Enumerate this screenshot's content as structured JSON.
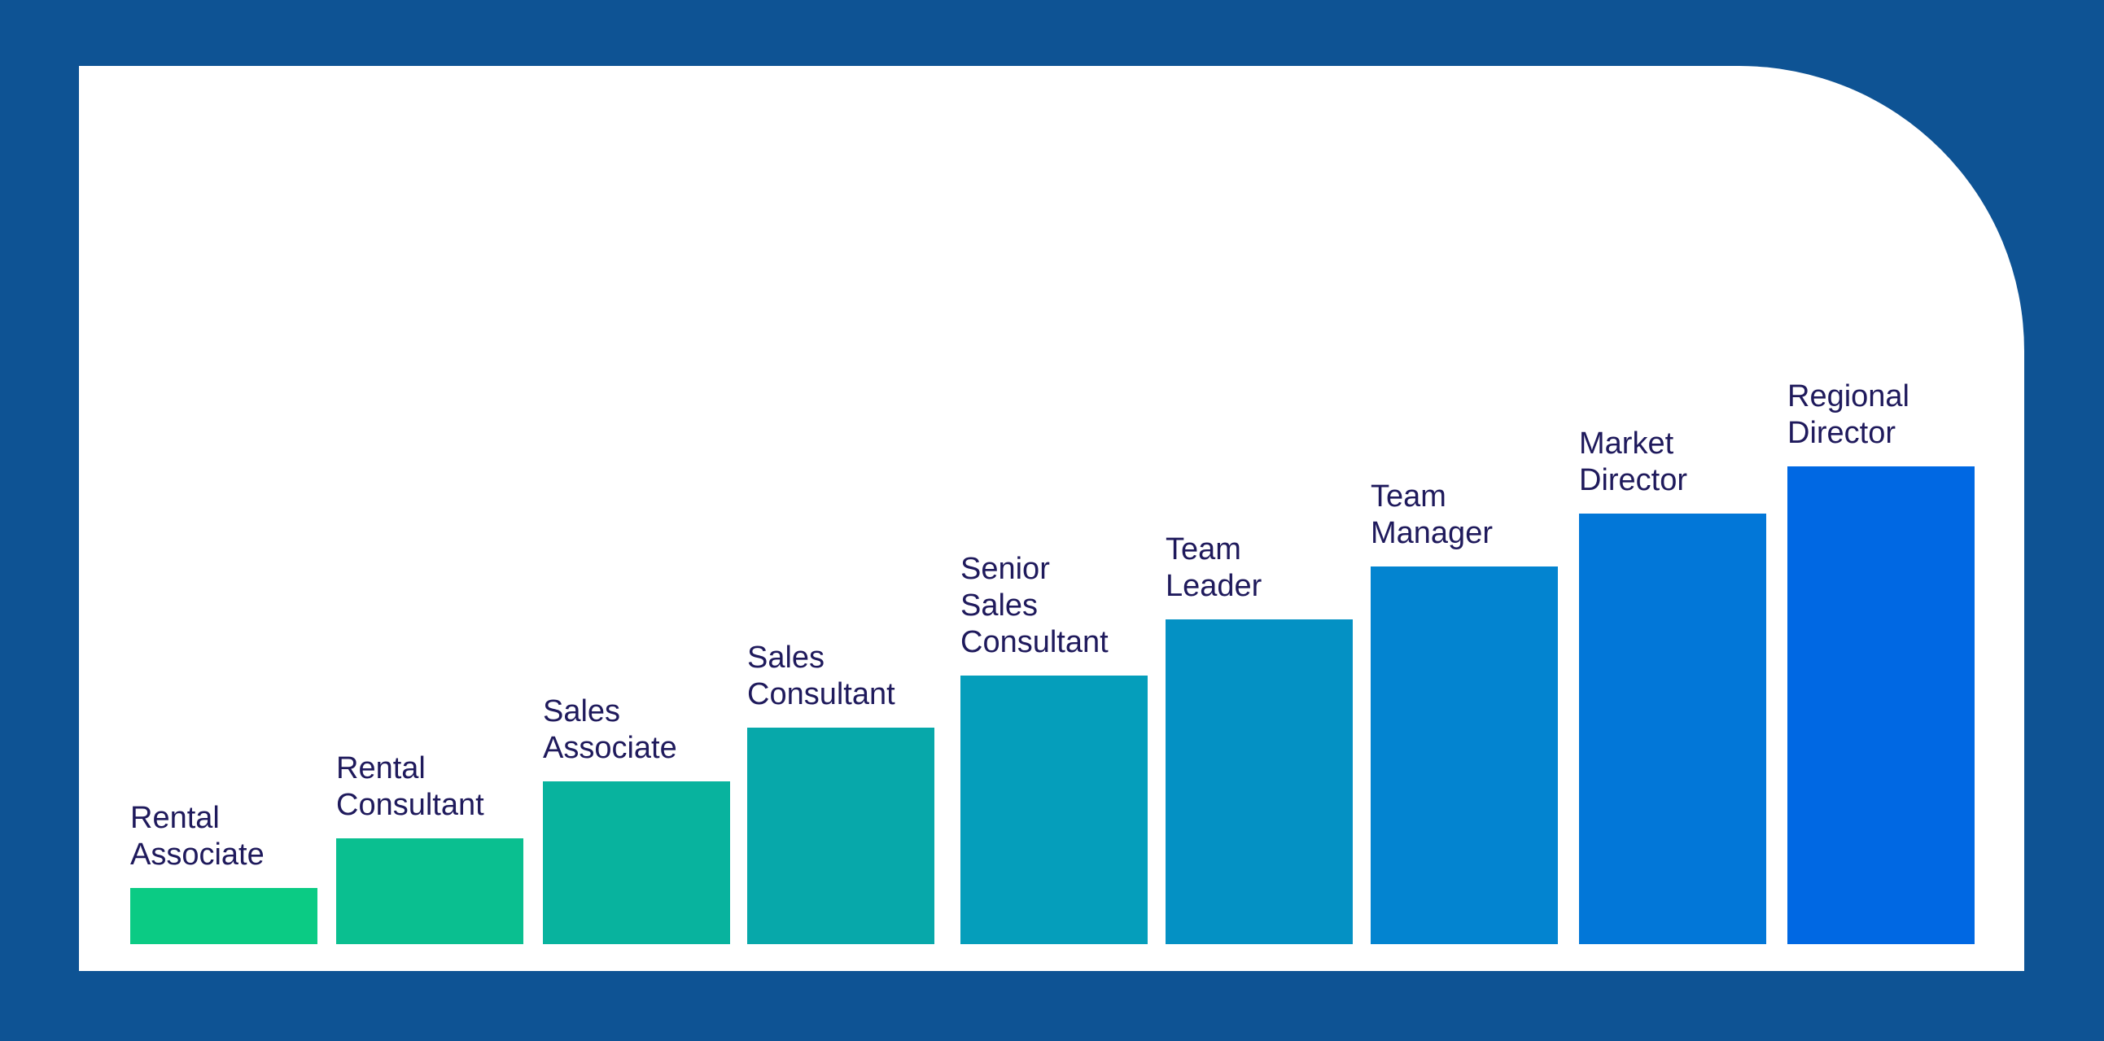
{
  "steps": [
    {
      "label": "Rental\nAssociate",
      "color": "#0bcb84"
    },
    {
      "label": "Rental\nConsultant",
      "color": "#0abf90"
    },
    {
      "label": "Sales\nAssociate",
      "color": "#08b39e"
    },
    {
      "label": "Sales\nConsultant",
      "color": "#07a8aa"
    },
    {
      "label": "Senior\nSales\nConsultant",
      "color": "#059ebb"
    },
    {
      "label": "Team\nLeader",
      "color": "#0491c4"
    },
    {
      "label": "Team\nManager",
      "color": "#0384d0"
    },
    {
      "label": "Market\nDirector",
      "color": "#0277d8"
    },
    {
      "label": "Regional\nDirector",
      "color": "#0068e3"
    }
  ]
}
